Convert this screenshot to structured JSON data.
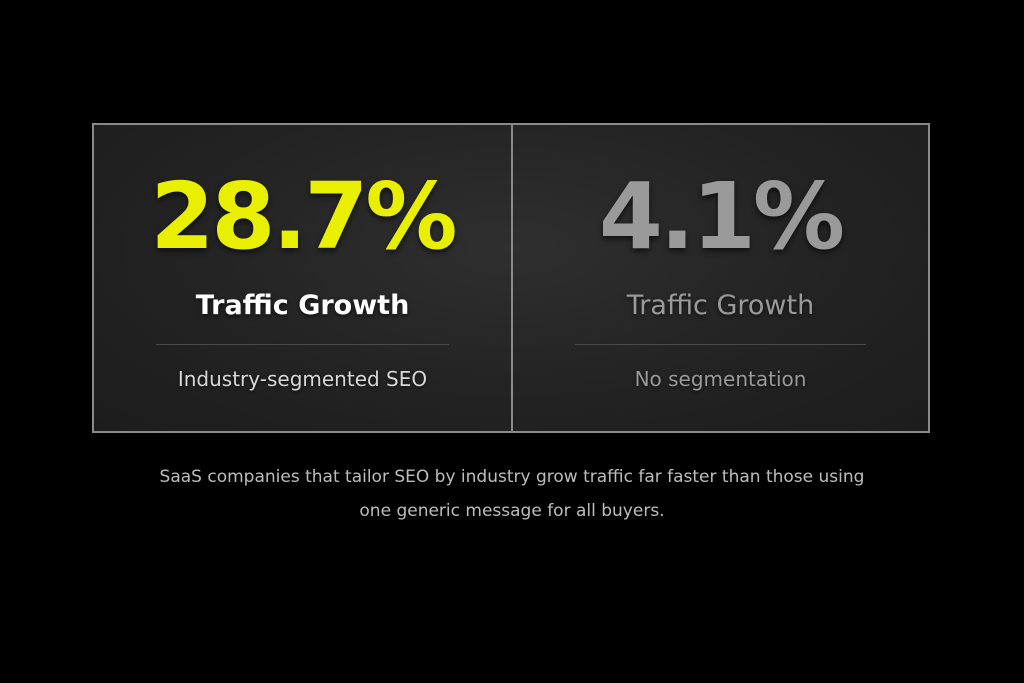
{
  "colors": {
    "background": "#000000",
    "panel_border": "#8a8a8a",
    "highlight": "#e8f000",
    "muted": "#9a9a9a",
    "primary_text": "#ffffff",
    "secondary_text": "#d8d8d8",
    "summary_text": "#bdbdbd"
  },
  "panels": [
    {
      "value": "28.7%",
      "label": "Traffic Growth",
      "caption": "Industry-segmented SEO"
    },
    {
      "value": "4.1%",
      "label": "Traffic Growth",
      "caption": "No segmentation"
    }
  ],
  "summary": {
    "line1": "SaaS companies that tailor SEO by industry grow traffic far faster than those using",
    "line2": "one generic message for all buyers."
  }
}
